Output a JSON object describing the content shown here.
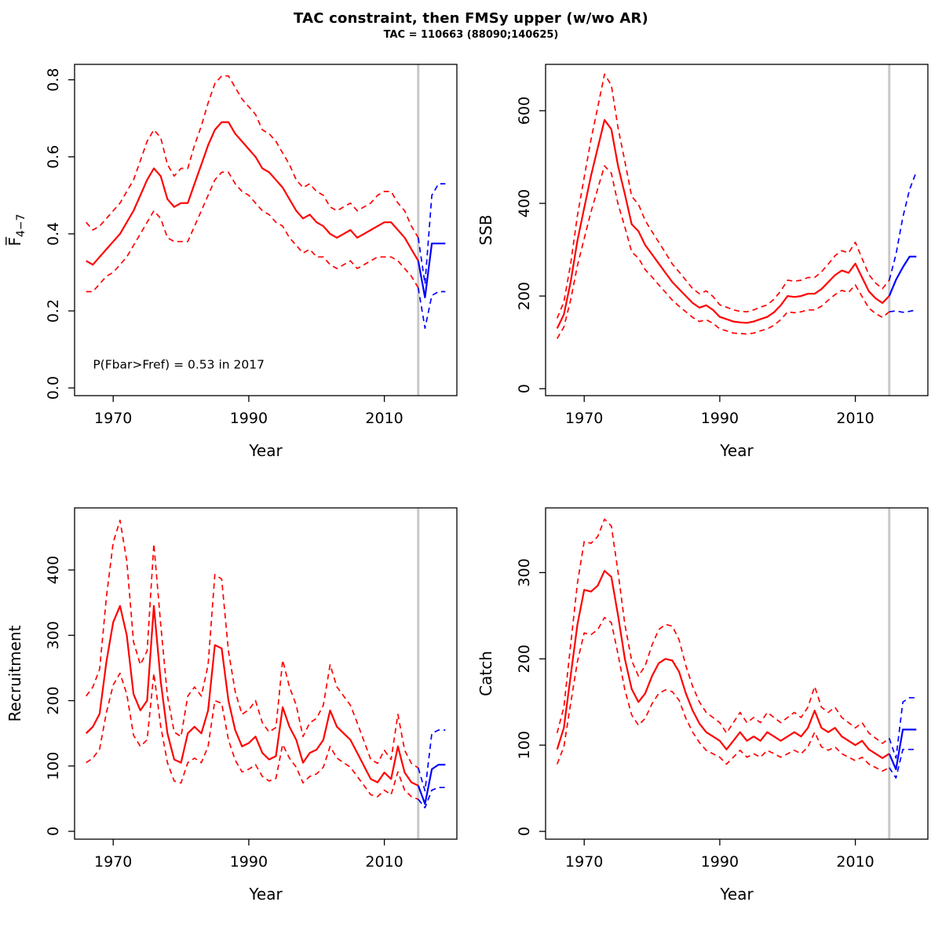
{
  "title": "TAC constraint, then FMSy upper (w/wo AR)",
  "subtitle": "TAC = 110663 (88090;140625)",
  "colors": {
    "estimate": "#ff0000",
    "forecast": "#0000ff",
    "vline": "#c8c8c8"
  },
  "chart_data": [
    {
      "type": "line",
      "name": "fbar",
      "xlabel": "Year",
      "ylabel": "F̅",
      "ylabel_sub": "4−7",
      "xlim": [
        1964.3,
        2020.7
      ],
      "ylim": [
        -0.02,
        0.84
      ],
      "xticks": [
        1970,
        1990,
        2010
      ],
      "ytick_values": [
        0,
        0.2,
        0.4,
        0.6,
        0.8
      ],
      "ytick_labels": [
        "0.0",
        "0.2",
        "0.4",
        "0.6",
        "0.8"
      ],
      "vline": 2015,
      "annotation": {
        "text": "P(Fbar>Fref) = 0.53  in 2017",
        "x": 1967,
        "y": 0.05
      },
      "series": [
        {
          "name": "ci-lower",
          "color": "estimate",
          "dash": true,
          "x_start": 1966,
          "values": [
            0.25,
            0.25,
            0.27,
            0.29,
            0.3,
            0.32,
            0.34,
            0.37,
            0.4,
            0.43,
            0.46,
            0.44,
            0.39,
            0.38,
            0.38,
            0.38,
            0.42,
            0.46,
            0.5,
            0.54,
            0.56,
            0.56,
            0.53,
            0.51,
            0.5,
            0.48,
            0.46,
            0.45,
            0.43,
            0.42,
            0.39,
            0.37,
            0.35,
            0.36,
            0.34,
            0.34,
            0.32,
            0.31,
            0.32,
            0.33,
            0.31,
            0.32,
            0.33,
            0.34,
            0.34,
            0.34,
            0.33,
            0.31,
            0.29,
            0.26
          ]
        },
        {
          "name": "ci-upper",
          "color": "estimate",
          "dash": true,
          "x_start": 1966,
          "values": [
            0.43,
            0.41,
            0.42,
            0.44,
            0.46,
            0.48,
            0.51,
            0.54,
            0.59,
            0.64,
            0.67,
            0.65,
            0.58,
            0.55,
            0.57,
            0.57,
            0.63,
            0.68,
            0.74,
            0.79,
            0.81,
            0.81,
            0.78,
            0.75,
            0.73,
            0.71,
            0.67,
            0.66,
            0.64,
            0.61,
            0.58,
            0.54,
            0.52,
            0.53,
            0.51,
            0.5,
            0.47,
            0.46,
            0.47,
            0.48,
            0.46,
            0.47,
            0.48,
            0.5,
            0.51,
            0.51,
            0.48,
            0.46,
            0.42,
            0.39
          ]
        },
        {
          "name": "median",
          "color": "estimate",
          "dash": false,
          "x_start": 1966,
          "values": [
            0.33,
            0.32,
            0.34,
            0.36,
            0.38,
            0.4,
            0.43,
            0.46,
            0.5,
            0.54,
            0.57,
            0.55,
            0.49,
            0.47,
            0.48,
            0.48,
            0.53,
            0.58,
            0.63,
            0.67,
            0.69,
            0.69,
            0.66,
            0.64,
            0.62,
            0.6,
            0.57,
            0.56,
            0.54,
            0.52,
            0.49,
            0.46,
            0.44,
            0.45,
            0.43,
            0.42,
            0.4,
            0.39,
            0.4,
            0.41,
            0.39,
            0.4,
            0.41,
            0.42,
            0.43,
            0.43,
            0.41,
            0.39,
            0.36,
            0.33
          ]
        },
        {
          "name": "forecast-ci-lower",
          "color": "forecast",
          "dash": true,
          "x_start": 2015,
          "values": [
            0.26,
            0.155,
            0.24,
            0.25,
            0.25
          ]
        },
        {
          "name": "forecast-ci-upper",
          "color": "forecast",
          "dash": true,
          "x_start": 2015,
          "values": [
            0.39,
            0.27,
            0.5,
            0.53,
            0.53
          ]
        },
        {
          "name": "forecast-median",
          "color": "forecast",
          "dash": false,
          "x_start": 2015,
          "values": [
            0.33,
            0.235,
            0.375,
            0.375,
            0.375
          ]
        }
      ]
    },
    {
      "type": "line",
      "name": "ssb",
      "xlabel": "Year",
      "ylabel": "SSB",
      "ylabel_sub": "",
      "xlim": [
        1964.3,
        2020.7
      ],
      "ylim": [
        -15,
        700
      ],
      "xticks": [
        1970,
        1990,
        2010
      ],
      "ytick_values": [
        0,
        200,
        400,
        600
      ],
      "ytick_labels": [
        "0",
        "200",
        "400",
        "600"
      ],
      "vline": 2015,
      "annotation": null,
      "series": [
        {
          "name": "ci-lower",
          "color": "estimate",
          "dash": true,
          "x_start": 1966,
          "values": [
            108,
            133,
            191,
            266,
            324,
            382,
            432,
            481,
            465,
            398,
            349,
            295,
            282,
            257,
            241,
            224,
            208,
            191,
            178,
            166,
            154,
            145,
            149,
            141,
            129,
            125,
            120,
            119,
            118,
            120,
            125,
            129,
            137,
            149,
            166,
            164,
            166,
            170,
            170,
            178,
            191,
            203,
            212,
            208,
            224,
            199,
            174,
            162,
            154,
            166
          ]
        },
        {
          "name": "ci-upper",
          "color": "estimate",
          "dash": true,
          "x_start": 1966,
          "values": [
            152,
            187,
            269,
            374,
            456,
            538,
            608,
            679,
            655,
            562,
            491,
            415,
            398,
            363,
            339,
            316,
            293,
            269,
            252,
            234,
            216,
            205,
            211,
            199,
            181,
            176,
            170,
            167,
            166,
            170,
            176,
            181,
            193,
            211,
            234,
            232,
            234,
            240,
            240,
            252,
            269,
            287,
            298,
            293,
            316,
            281,
            246,
            228,
            216,
            234
          ]
        },
        {
          "name": "median",
          "color": "estimate",
          "dash": false,
          "x_start": 1966,
          "values": [
            130,
            160,
            230,
            320,
            390,
            460,
            520,
            580,
            560,
            480,
            420,
            355,
            340,
            310,
            290,
            270,
            250,
            230,
            215,
            200,
            185,
            175,
            180,
            170,
            155,
            150,
            145,
            143,
            142,
            145,
            150,
            155,
            165,
            180,
            200,
            198,
            200,
            205,
            205,
            215,
            230,
            245,
            255,
            250,
            270,
            240,
            210,
            195,
            185,
            200
          ]
        },
        {
          "name": "forecast-ci-lower",
          "color": "forecast",
          "dash": true,
          "x_start": 2015,
          "values": [
            166,
            168,
            165,
            167,
            170
          ]
        },
        {
          "name": "forecast-ci-upper",
          "color": "forecast",
          "dash": true,
          "x_start": 2015,
          "values": [
            234,
            290,
            370,
            430,
            468
          ]
        },
        {
          "name": "forecast-median",
          "color": "forecast",
          "dash": false,
          "x_start": 2015,
          "values": [
            200,
            235,
            262,
            285,
            285
          ]
        }
      ]
    },
    {
      "type": "line",
      "name": "recruitment",
      "xlabel": "Year",
      "ylabel": "Recruitment",
      "ylabel_sub": "",
      "xlim": [
        1964.3,
        2020.7
      ],
      "ylim": [
        -12,
        495
      ],
      "xticks": [
        1970,
        1990,
        2010
      ],
      "ytick_values": [
        0,
        100,
        200,
        300,
        400
      ],
      "ytick_labels": [
        "0",
        "100",
        "200",
        "300",
        "400"
      ],
      "vline": 2015,
      "annotation": null,
      "series": [
        {
          "name": "ci-lower",
          "color": "estimate",
          "dash": true,
          "x_start": 1966,
          "values": [
            105,
            112,
            126,
            182,
            224,
            242,
            210,
            147,
            130,
            140,
            242,
            161,
            105,
            77,
            74,
            105,
            112,
            105,
            130,
            200,
            196,
            140,
            109,
            91,
            95,
            102,
            84,
            77,
            81,
            133,
            112,
            98,
            74,
            84,
            88,
            98,
            130,
            112,
            105,
            98,
            84,
            70,
            56,
            53,
            63,
            56,
            91,
            63,
            53,
            49
          ]
        },
        {
          "name": "ci-upper",
          "color": "estimate",
          "dash": true,
          "x_start": 1966,
          "values": [
            207,
            221,
            248,
            359,
            442,
            476,
            414,
            290,
            255,
            276,
            440,
            317,
            207,
            152,
            145,
            207,
            221,
            207,
            255,
            393,
            386,
            276,
            214,
            179,
            186,
            200,
            166,
            152,
            159,
            262,
            221,
            193,
            145,
            166,
            173,
            193,
            255,
            221,
            207,
            193,
            166,
            138,
            110,
            104,
            124,
            110,
            179,
            124,
            104,
            97
          ]
        },
        {
          "name": "median",
          "color": "estimate",
          "dash": false,
          "x_start": 1966,
          "values": [
            150,
            160,
            180,
            260,
            320,
            345,
            300,
            210,
            185,
            200,
            345,
            230,
            150,
            110,
            105,
            150,
            160,
            150,
            185,
            285,
            280,
            200,
            155,
            130,
            135,
            145,
            120,
            110,
            115,
            190,
            160,
            140,
            105,
            120,
            125,
            140,
            185,
            160,
            150,
            140,
            120,
            100,
            80,
            75,
            90,
            80,
            130,
            90,
            75,
            70
          ]
        },
        {
          "name": "forecast-ci-lower",
          "color": "forecast",
          "dash": true,
          "x_start": 2015,
          "values": [
            49,
            36,
            63,
            67,
            67
          ]
        },
        {
          "name": "forecast-ci-upper",
          "color": "forecast",
          "dash": true,
          "x_start": 2015,
          "values": [
            97,
            62,
            150,
            155,
            155
          ]
        },
        {
          "name": "forecast-median",
          "color": "forecast",
          "dash": false,
          "x_start": 2015,
          "values": [
            70,
            42,
            95,
            102,
            102
          ]
        }
      ]
    },
    {
      "type": "line",
      "name": "catch",
      "xlabel": "Year",
      "ylabel": "Catch",
      "ylabel_sub": "",
      "xlim": [
        1964.3,
        2020.7
      ],
      "ylim": [
        -9,
        375
      ],
      "xticks": [
        1970,
        1990,
        2010
      ],
      "ytick_values": [
        0,
        100,
        200,
        300
      ],
      "ytick_labels": [
        "0",
        "100",
        "200",
        "300"
      ],
      "vline": 2015,
      "annotation": null,
      "series": [
        {
          "name": "ci-lower",
          "color": "estimate",
          "dash": true,
          "x_start": 1966,
          "values": [
            78,
            98,
            148,
            197,
            230,
            228,
            234,
            248,
            242,
            205,
            164,
            135,
            123,
            131,
            148,
            160,
            164,
            162,
            152,
            131,
            115,
            103,
            94,
            90,
            86,
            78,
            86,
            94,
            86,
            90,
            86,
            94,
            90,
            86,
            90,
            94,
            90,
            98,
            115,
            98,
            94,
            98,
            90,
            86,
            82,
            86,
            78,
            74,
            70,
            74
          ]
        },
        {
          "name": "ci-upper",
          "color": "estimate",
          "dash": true,
          "x_start": 1966,
          "values": [
            114,
            144,
            216,
            288,
            336,
            334,
            342,
            362,
            354,
            300,
            240,
            198,
            180,
            192,
            216,
            234,
            240,
            238,
            222,
            192,
            168,
            150,
            138,
            132,
            126,
            114,
            126,
            138,
            126,
            132,
            126,
            138,
            132,
            126,
            132,
            138,
            132,
            144,
            168,
            144,
            138,
            144,
            132,
            126,
            120,
            126,
            114,
            108,
            102,
            108
          ]
        },
        {
          "name": "median",
          "color": "estimate",
          "dash": false,
          "x_start": 1966,
          "values": [
            95,
            120,
            180,
            240,
            280,
            278,
            285,
            302,
            295,
            250,
            200,
            165,
            150,
            160,
            180,
            195,
            200,
            198,
            185,
            160,
            140,
            125,
            115,
            110,
            105,
            95,
            105,
            115,
            105,
            110,
            105,
            115,
            110,
            105,
            110,
            115,
            110,
            120,
            140,
            120,
            115,
            120,
            110,
            105,
            100,
            105,
            95,
            90,
            85,
            90
          ]
        },
        {
          "name": "forecast-ci-lower",
          "color": "forecast",
          "dash": true,
          "x_start": 2015,
          "values": [
            74,
            62,
            95,
            95,
            95
          ]
        },
        {
          "name": "forecast-ci-upper",
          "color": "forecast",
          "dash": true,
          "x_start": 2015,
          "values": [
            108,
            85,
            150,
            155,
            155
          ]
        },
        {
          "name": "forecast-median",
          "color": "forecast",
          "dash": false,
          "x_start": 2015,
          "values": [
            90,
            72,
            118,
            118,
            118
          ]
        }
      ]
    }
  ]
}
